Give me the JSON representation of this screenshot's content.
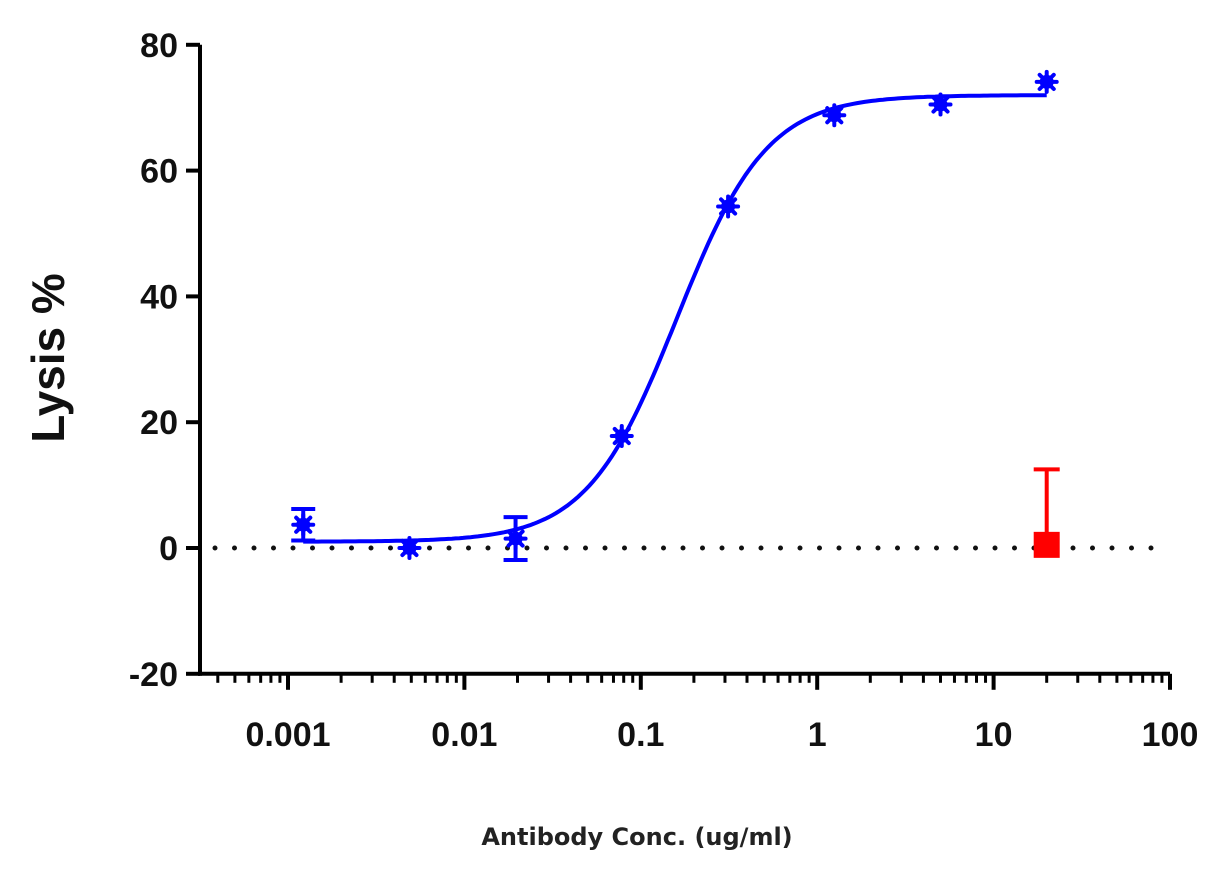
{
  "chart_data": {
    "type": "scatter",
    "title": "",
    "xlabel": "Antibody Conc. (ug/ml)",
    "ylabel": "Lysis %",
    "x_scale": "log",
    "xlim": [
      0.0004,
      100
    ],
    "ylim": [
      -20,
      80
    ],
    "x_ticks": [
      "0.001",
      "0.01",
      "0.1",
      "1",
      "10",
      "100"
    ],
    "y_ticks": [
      "80",
      "60",
      "40",
      "20",
      "0",
      "-20"
    ],
    "grid": false,
    "reference_line": {
      "y": 0,
      "style": "dotted"
    },
    "series": [
      {
        "color": "#0000ff",
        "marker": "asterisk",
        "x": [
          0.00122,
          0.00488,
          0.0195,
          0.078,
          0.3125,
          1.25,
          5,
          20
        ],
        "y": [
          3.7,
          0,
          1.5,
          17.8,
          54.3,
          68.8,
          70.5,
          74.1
        ],
        "error": [
          2.5,
          0.5,
          3.4,
          0.6,
          0.6,
          0.6,
          0.6,
          0.6
        ],
        "fit": {
          "model": "sigmoidal dose-response",
          "bottom": 1,
          "top": 72,
          "ec50": 0.16,
          "hill": 1.7
        }
      },
      {
        "color": "#ff0000",
        "marker": "square",
        "x": [
          20
        ],
        "y": [
          0.5
        ],
        "error_upper": [
          12
        ],
        "error": [
          12
        ]
      }
    ]
  }
}
